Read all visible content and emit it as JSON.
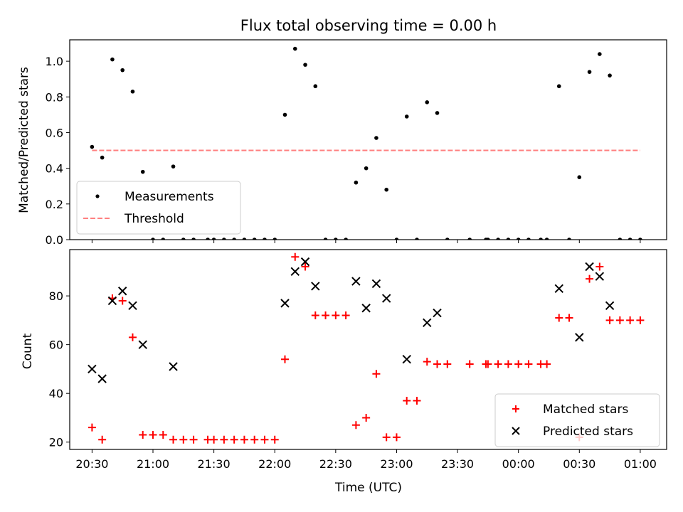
{
  "chart_data": {
    "title": "Flux total observing time = 0.00 h",
    "x_axis": {
      "label": "Time (UTC)",
      "range": [
        "20:19",
        "01:13"
      ],
      "ticks": [
        "20:30",
        "21:00",
        "21:30",
        "22:00",
        "22:30",
        "23:00",
        "23:30",
        "00:00",
        "00:30",
        "01:00"
      ]
    },
    "panels": [
      {
        "type": "scatter",
        "ylabel": "Matched/Predicted stars",
        "ylim": [
          0,
          1.12
        ],
        "yticks": [
          "0.0",
          "0.2",
          "0.4",
          "0.6",
          "0.8",
          "1.0"
        ],
        "legend_position": "lower-left",
        "series": [
          {
            "name": "Measurements",
            "marker": "dot",
            "color": "#000000",
            "points": [
              [
                "20:30",
                0.52
              ],
              [
                "20:35",
                0.46
              ],
              [
                "20:40",
                1.01
              ],
              [
                "20:45",
                0.95
              ],
              [
                "20:50",
                0.83
              ],
              [
                "20:55",
                0.38
              ],
              [
                "21:00",
                0.0
              ],
              [
                "21:05",
                0.0
              ],
              [
                "21:10",
                0.41
              ],
              [
                "21:15",
                0.0
              ],
              [
                "21:20",
                0.0
              ],
              [
                "21:27",
                0.0
              ],
              [
                "21:30",
                0.0
              ],
              [
                "21:35",
                0.0
              ],
              [
                "21:40",
                0.0
              ],
              [
                "21:45",
                0.0
              ],
              [
                "21:50",
                0.0
              ],
              [
                "21:55",
                0.0
              ],
              [
                "22:00",
                0.0
              ],
              [
                "22:05",
                0.7
              ],
              [
                "22:10",
                1.07
              ],
              [
                "22:15",
                0.98
              ],
              [
                "22:20",
                0.86
              ],
              [
                "22:25",
                0.0
              ],
              [
                "22:30",
                0.0
              ],
              [
                "22:35",
                0.0
              ],
              [
                "22:40",
                0.32
              ],
              [
                "22:45",
                0.4
              ],
              [
                "22:50",
                0.57
              ],
              [
                "22:55",
                0.28
              ],
              [
                "23:00",
                0.0
              ],
              [
                "23:05",
                0.69
              ],
              [
                "23:10",
                0.0
              ],
              [
                "23:15",
                0.77
              ],
              [
                "23:20",
                0.71
              ],
              [
                "23:25",
                0.0
              ],
              [
                "23:36",
                0.0
              ],
              [
                "23:44",
                0.0
              ],
              [
                "23:45",
                0.0
              ],
              [
                "23:50",
                0.0
              ],
              [
                "23:55",
                0.0
              ],
              [
                "00:00",
                0.0
              ],
              [
                "00:05",
                0.0
              ],
              [
                "00:11",
                0.0
              ],
              [
                "00:14",
                0.0
              ],
              [
                "00:20",
                0.86
              ],
              [
                "00:25",
                0.0
              ],
              [
                "00:30",
                0.35
              ],
              [
                "00:35",
                0.94
              ],
              [
                "00:40",
                1.04
              ],
              [
                "00:45",
                0.92
              ],
              [
                "00:50",
                0.0
              ],
              [
                "00:55",
                0.0
              ],
              [
                "01:00",
                0.0
              ]
            ]
          },
          {
            "name": "Threshold",
            "type": "line",
            "style": "dashed",
            "color": "#ff8080",
            "points": [
              [
                "20:30",
                0.5
              ],
              [
                "01:00",
                0.5
              ]
            ]
          }
        ]
      },
      {
        "type": "scatter",
        "ylabel": "Count",
        "ylim": [
          17,
          99
        ],
        "yticks": [
          "20",
          "40",
          "60",
          "80"
        ],
        "legend_position": "lower-right",
        "series": [
          {
            "name": "Matched stars",
            "marker": "plus",
            "color": "#ff0000",
            "points": [
              [
                "20:30",
                26
              ],
              [
                "20:35",
                21
              ],
              [
                "20:40",
                79
              ],
              [
                "20:45",
                78
              ],
              [
                "20:50",
                63
              ],
              [
                "20:55",
                23
              ],
              [
                "21:00",
                23
              ],
              [
                "21:05",
                23
              ],
              [
                "21:10",
                21
              ],
              [
                "21:15",
                21
              ],
              [
                "21:20",
                21
              ],
              [
                "21:27",
                21
              ],
              [
                "21:30",
                21
              ],
              [
                "21:35",
                21
              ],
              [
                "21:40",
                21
              ],
              [
                "21:45",
                21
              ],
              [
                "21:50",
                21
              ],
              [
                "21:55",
                21
              ],
              [
                "22:00",
                21
              ],
              [
                "22:05",
                54
              ],
              [
                "22:10",
                96
              ],
              [
                "22:15",
                92
              ],
              [
                "22:20",
                72
              ],
              [
                "22:25",
                72
              ],
              [
                "22:30",
                72
              ],
              [
                "22:35",
                72
              ],
              [
                "22:40",
                27
              ],
              [
                "22:45",
                30
              ],
              [
                "22:50",
                48
              ],
              [
                "22:55",
                22
              ],
              [
                "23:00",
                22
              ],
              [
                "23:05",
                37
              ],
              [
                "23:10",
                37
              ],
              [
                "23:15",
                53
              ],
              [
                "23:20",
                52
              ],
              [
                "23:25",
                52
              ],
              [
                "23:36",
                52
              ],
              [
                "23:44",
                52
              ],
              [
                "23:45",
                52
              ],
              [
                "23:50",
                52
              ],
              [
                "23:55",
                52
              ],
              [
                "00:00",
                52
              ],
              [
                "00:05",
                52
              ],
              [
                "00:11",
                52
              ],
              [
                "00:14",
                52
              ],
              [
                "00:20",
                71
              ],
              [
                "00:25",
                71
              ],
              [
                "00:30",
                22
              ],
              [
                "00:35",
                87
              ],
              [
                "00:40",
                92
              ],
              [
                "00:45",
                70
              ],
              [
                "00:50",
                70
              ],
              [
                "00:55",
                70
              ],
              [
                "01:00",
                70
              ]
            ]
          },
          {
            "name": "Predicted stars",
            "marker": "x",
            "color": "#000000",
            "points": [
              [
                "20:30",
                50
              ],
              [
                "20:35",
                46
              ],
              [
                "20:40",
                78
              ],
              [
                "20:45",
                82
              ],
              [
                "20:50",
                76
              ],
              [
                "20:55",
                60
              ],
              [
                "21:10",
                51
              ],
              [
                "22:05",
                77
              ],
              [
                "22:10",
                90
              ],
              [
                "22:15",
                94
              ],
              [
                "22:20",
                84
              ],
              [
                "22:40",
                86
              ],
              [
                "22:45",
                75
              ],
              [
                "22:50",
                85
              ],
              [
                "22:55",
                79
              ],
              [
                "23:05",
                54
              ],
              [
                "23:15",
                69
              ],
              [
                "23:20",
                73
              ],
              [
                "00:20",
                83
              ],
              [
                "00:30",
                63
              ],
              [
                "00:35",
                92
              ],
              [
                "00:40",
                88
              ],
              [
                "00:45",
                76
              ]
            ]
          }
        ]
      }
    ]
  }
}
